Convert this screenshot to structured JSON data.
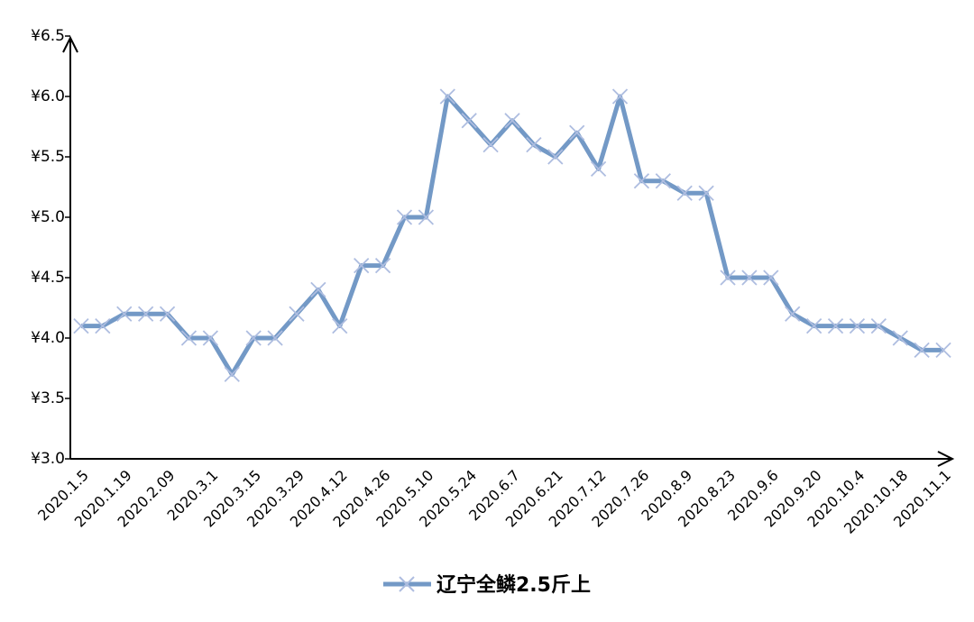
{
  "chart_data": {
    "type": "line",
    "categories": [
      "2020.1.5",
      null,
      "2020.1.19",
      null,
      "2020.2.09",
      null,
      "2020.3.1",
      null,
      "2020.3.15",
      null,
      "2020.3.29",
      null,
      "2020.4.12",
      null,
      "2020.4.26",
      null,
      "2020.5.10",
      null,
      "2020.5.24",
      null,
      "2020.6.7",
      null,
      "2020.6.21",
      null,
      "2020.7.12",
      null,
      "2020.7.26",
      null,
      "2020.8.9",
      null,
      "2020.8.23",
      null,
      "2020.9.6",
      null,
      "2020.9.20",
      null,
      "2020.10.4",
      null,
      "2020.10.18",
      null,
      "2020.11.1"
    ],
    "series": [
      {
        "name": "辽宁全鳞2.5斤上",
        "color": "#7399c6",
        "marker_color": "#aebde0",
        "values": [
          4.1,
          4.1,
          4.2,
          4.2,
          4.2,
          4.0,
          4.0,
          3.7,
          4.0,
          4.0,
          4.2,
          4.4,
          4.1,
          4.6,
          4.6,
          5.0,
          5.0,
          6.0,
          5.8,
          5.6,
          5.8,
          5.6,
          5.5,
          5.7,
          5.4,
          6.0,
          5.3,
          5.3,
          5.2,
          5.2,
          4.5,
          4.5,
          4.5,
          4.2,
          4.1,
          4.1,
          4.1,
          4.1,
          4.0,
          3.9,
          3.9
        ]
      }
    ],
    "ylim": [
      3.0,
      6.5
    ],
    "yticks": [
      {
        "value": 3.0,
        "label": "¥3.0"
      },
      {
        "value": 3.5,
        "label": "¥3.5"
      },
      {
        "value": 4.0,
        "label": "¥4.0"
      },
      {
        "value": 4.5,
        "label": "¥4.5"
      },
      {
        "value": 5.0,
        "label": "¥5.0"
      },
      {
        "value": 5.5,
        "label": "¥5.5"
      },
      {
        "value": 6.0,
        "label": "¥6.0"
      },
      {
        "value": 6.5,
        "label": "¥6.5"
      }
    ],
    "legend": "bottom"
  }
}
